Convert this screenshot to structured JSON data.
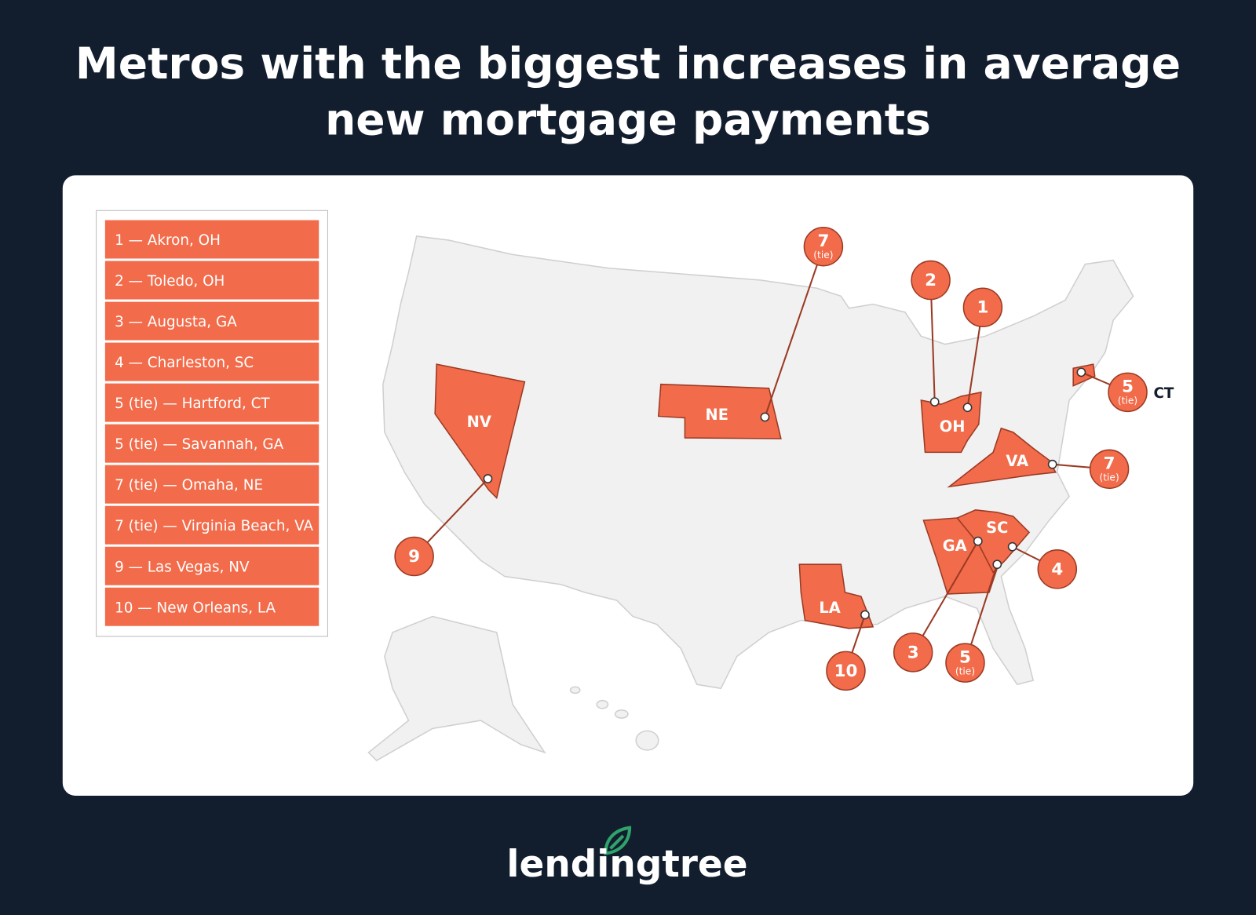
{
  "header": {
    "title_lines": [
      "Metros with the biggest increases in average",
      "new mortgage payments"
    ]
  },
  "legend": {
    "items": [
      "1 — Akron, OH",
      "2 — Toledo, OH",
      "3 — Augusta, GA",
      "4 — Charleston, SC",
      "5 (tie) — Hartford, CT",
      "5 (tie) — Savannah, GA",
      "7 (tie) — Omaha, NE",
      "7 (tie) — Virginia Beach, VA",
      "9 — Las Vegas, NV",
      "10 — New Orleans, LA"
    ]
  },
  "map": {
    "states": [
      "NV",
      "NE",
      "OH",
      "VA",
      "GA",
      "SC",
      "LA"
    ],
    "markers": [
      {
        "rank": "7",
        "note": "(tie)"
      },
      {
        "rank": "2"
      },
      {
        "rank": "1"
      },
      {
        "rank": "5",
        "note": "(tie)"
      },
      {
        "rank": "7",
        "note": "(tie)"
      },
      {
        "rank": "9"
      },
      {
        "rank": "10"
      },
      {
        "rank": "3"
      },
      {
        "rank": "5",
        "note": "(tie)"
      },
      {
        "rank": "4"
      }
    ],
    "outside_label": "CT"
  },
  "footer": {
    "brand": "lendingtree"
  }
}
